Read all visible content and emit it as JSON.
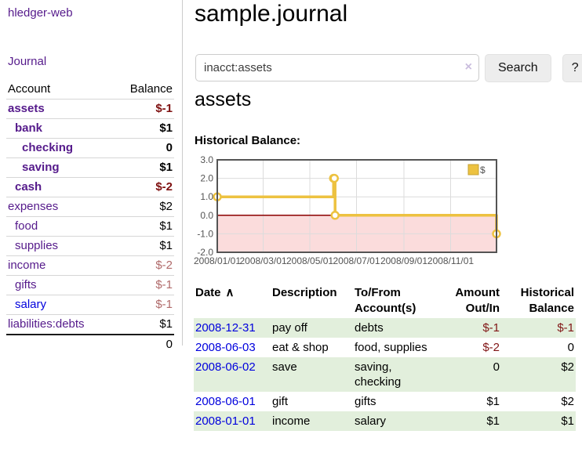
{
  "sidebar": {
    "app_title": "hledger-web",
    "journal_label": "Journal",
    "accounts_header": [
      "Account",
      "Balance"
    ],
    "accounts": [
      {
        "name": "assets",
        "level": 1,
        "bold": true,
        "link_color": "purple",
        "balance": "$-1",
        "balance_class": "neg-strong"
      },
      {
        "name": "bank",
        "level": 2,
        "bold": true,
        "link_color": "purple",
        "balance": "$1",
        "balance_class": "pos"
      },
      {
        "name": "checking",
        "level": 3,
        "bold": true,
        "link_color": "purple",
        "balance": "0",
        "balance_class": "pos"
      },
      {
        "name": "saving",
        "level": 3,
        "bold": true,
        "link_color": "purple",
        "balance": "$1",
        "balance_class": "pos"
      },
      {
        "name": "cash",
        "level": 2,
        "bold": true,
        "link_color": "purple",
        "balance": "$-2",
        "balance_class": "neg-strong"
      },
      {
        "name": "expenses",
        "level": 1,
        "bold": false,
        "link_color": "purple",
        "balance": "$2",
        "balance_class": "pos"
      },
      {
        "name": "food",
        "level": 2,
        "bold": false,
        "link_color": "purple",
        "balance": "$1",
        "balance_class": "pos"
      },
      {
        "name": "supplies",
        "level": 2,
        "bold": false,
        "link_color": "purple",
        "balance": "$1",
        "balance_class": "pos"
      },
      {
        "name": "income",
        "level": 1,
        "bold": false,
        "link_color": "purple",
        "balance": "$-2",
        "balance_class": "neg-soft"
      },
      {
        "name": "gifts",
        "level": 2,
        "bold": false,
        "link_color": "purple",
        "balance": "$-1",
        "balance_class": "neg-soft"
      },
      {
        "name": "salary",
        "level": 2,
        "bold": false,
        "link_color": "blue",
        "balance": "$-1",
        "balance_class": "neg-soft"
      },
      {
        "name": "liabilities:debts",
        "level": 1,
        "bold": false,
        "link_color": "purple",
        "balance": "$1",
        "balance_class": "pos"
      }
    ],
    "total": "0"
  },
  "main": {
    "title": "sample.journal",
    "search": {
      "value": "inacct:assets",
      "placeholder": "",
      "clear_icon": "×",
      "button_label": "Search",
      "help_label": "?"
    },
    "account_heading": "assets",
    "chart_label": "Historical Balance:",
    "table": {
      "columns": [
        "Date",
        "Description",
        "To/From Account(s)",
        "Amount Out/In",
        "Historical Balance"
      ],
      "sort_icon": "∧",
      "rows": [
        {
          "date": "2008-12-31",
          "description": "pay off",
          "accounts": "debts",
          "amount": "$-1",
          "amount_negative": true,
          "balance": "$-1",
          "balance_negative": true,
          "shaded": true
        },
        {
          "date": "2008-06-03",
          "description": "eat & shop",
          "accounts": "food, supplies",
          "amount": "$-2",
          "amount_negative": true,
          "balance": "0",
          "balance_negative": false,
          "shaded": false
        },
        {
          "date": "2008-06-02",
          "description": "save",
          "accounts": "saving, checking",
          "amount": "0",
          "amount_negative": false,
          "balance": "$2",
          "balance_negative": false,
          "shaded": true
        },
        {
          "date": "2008-06-01",
          "description": "gift",
          "accounts": "gifts",
          "amount": "$1",
          "amount_negative": false,
          "balance": "$2",
          "balance_negative": false,
          "shaded": false
        },
        {
          "date": "2008-01-01",
          "description": "income",
          "accounts": "salary",
          "amount": "$1",
          "amount_negative": false,
          "balance": "$1",
          "balance_negative": false,
          "shaded": true
        }
      ]
    }
  },
  "chart_data": {
    "type": "line",
    "title": "Historical Balance:",
    "step": true,
    "series": [
      {
        "name": "$",
        "color": "#edc240",
        "points": [
          [
            "2008-01-01",
            1
          ],
          [
            "2008-06-01",
            2
          ],
          [
            "2008-06-02",
            2
          ],
          [
            "2008-06-03",
            0
          ],
          [
            "2008-12-31",
            -1
          ]
        ]
      }
    ],
    "xlim": [
      "2008-01-01",
      "2008-12-31"
    ],
    "ylim": [
      -2,
      3
    ],
    "yticks": [
      3,
      2,
      1,
      0,
      -1,
      -2
    ],
    "ytick_labels": [
      "3.0",
      "2.0",
      "1.0",
      "0.0",
      "-1.0",
      "-2.0"
    ],
    "xticks": [
      "2008-01-01",
      "2008-03-01",
      "2008-05-01",
      "2008-07-01",
      "2008-09-01",
      "2008-11-01"
    ],
    "xtick_labels": [
      "2008/01/01",
      "2008/03/01",
      "2008/05/01",
      "2008/07/01",
      "2008/09/01",
      "2008/11/01"
    ],
    "legend": {
      "label": "$",
      "position": "top-right"
    },
    "grid": true,
    "grid_color": "#dcdcdc",
    "zero_line_color": "#8b0000",
    "negative_fill": "#fbdcdc",
    "border_color": "#545454",
    "tick_text_color": "#545454"
  },
  "colors": {
    "link_purple": "#551a8b",
    "link_blue": "#0000dd",
    "negative_strong": "#7e1010",
    "negative_soft": "#b06a6a",
    "row_green": "#e2efdc",
    "chart_line": "#edc240"
  }
}
